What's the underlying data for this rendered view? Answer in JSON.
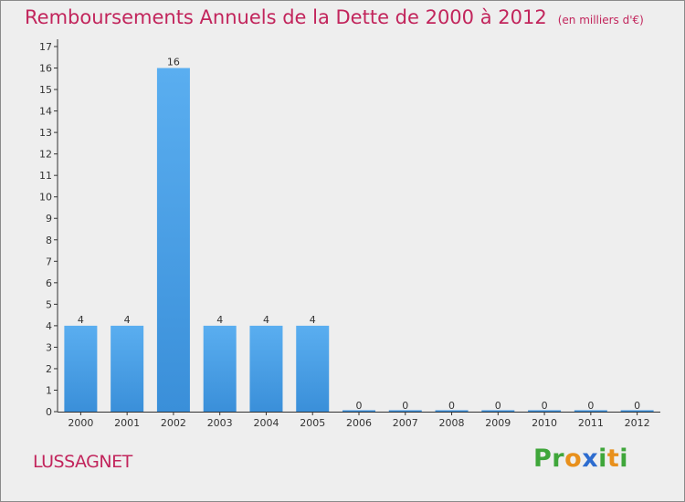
{
  "chart_data": {
    "type": "bar",
    "title": "Remboursements Annuels de la Dette de 2000 à 2012",
    "subtitle": "(en milliers d'€)",
    "xlabel": "",
    "ylabel": "",
    "categories": [
      "2000",
      "2001",
      "2002",
      "2003",
      "2004",
      "2005",
      "2006",
      "2007",
      "2008",
      "2009",
      "2010",
      "2011",
      "2012"
    ],
    "values": [
      4,
      4,
      16,
      4,
      4,
      4,
      0,
      0,
      0,
      0,
      0,
      0,
      0
    ],
    "ylim": [
      0,
      17
    ],
    "yticks": [
      0,
      1,
      2,
      3,
      4,
      5,
      6,
      7,
      8,
      9,
      10,
      11,
      12,
      13,
      14,
      15,
      16,
      17
    ],
    "grid": false,
    "legend": "none",
    "bar_color": "#3a8fd9",
    "bar_color_light": "#5aaef0"
  },
  "location_label": "LUSSAGNET",
  "brand": {
    "letters": [
      {
        "ch": "P",
        "color": "#3fa63a"
      },
      {
        "ch": "r",
        "color": "#3fa63a"
      },
      {
        "ch": "o",
        "color": "#e8901c"
      },
      {
        "ch": "x",
        "color": "#2d6ccf"
      },
      {
        "ch": "i",
        "color": "#3fa63a"
      },
      {
        "ch": "t",
        "color": "#e8901c"
      },
      {
        "ch": "i",
        "color": "#3fa63a"
      }
    ]
  },
  "colors": {
    "title": "#c2255c",
    "background": "#eeeeee"
  }
}
